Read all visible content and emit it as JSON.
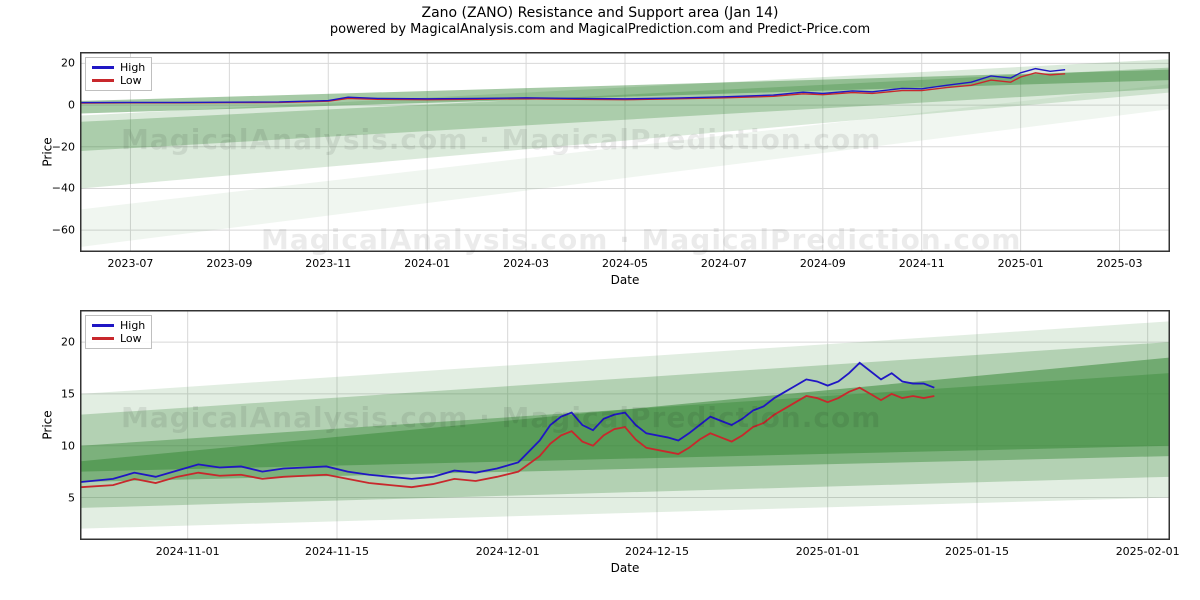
{
  "title": "Zano (ZANO) Resistance and Support area (Jan 14)",
  "subtitle": "powered by MagicalAnalysis.com and MagicalPrediction.com and Predict-Price.com",
  "legend": {
    "high": "High",
    "low": "Low"
  },
  "colors": {
    "high_line": "#1f16c4",
    "low_line": "#c8282c",
    "band_fill": "#3a8a3a",
    "grid": "#d8d8d8",
    "axis": "#333333",
    "watermark": "rgba(0,0,0,0.08)",
    "background": "#ffffff"
  },
  "font": {
    "family": "DejaVu Sans",
    "title_size": 14,
    "subtitle_size": 13,
    "axis_label_size": 12,
    "tick_size": 11,
    "legend_size": 11
  },
  "watermarks": [
    "MagicalAnalysis.com  ·  MagicalPrediction.com",
    "MagicalAnalysis.com  ·  MagicalPrediction.com",
    "MagicalAnalysis.com  ·  MagicalPrediction.com"
  ],
  "top_chart": {
    "type": "line_with_bands",
    "ylabel": "Price",
    "xlabel": "Date",
    "xlim": [
      0,
      22
    ],
    "ylim": [
      -70,
      25
    ],
    "ytick_vals": [
      -60,
      -40,
      -20,
      0,
      20
    ],
    "ytick_labels": [
      "−60",
      "−40",
      "−20",
      "0",
      "20"
    ],
    "xtick_vals": [
      1,
      3,
      5,
      7,
      9,
      11,
      13,
      15,
      17,
      19,
      21
    ],
    "xtick_labels": [
      "2023-07",
      "2023-09",
      "2023-11",
      "2024-01",
      "2024-03",
      "2024-05",
      "2024-07",
      "2024-09",
      "2024-11",
      "2025-01",
      "2025-03"
    ],
    "bands": [
      {
        "x": [
          0,
          22
        ],
        "y_top": [
          -5,
          22
        ],
        "y_bot": [
          -40,
          6
        ],
        "opacity": 0.18
      },
      {
        "x": [
          0,
          22
        ],
        "y_top": [
          -8,
          18
        ],
        "y_bot": [
          -22,
          8
        ],
        "opacity": 0.3
      },
      {
        "x": [
          0,
          22
        ],
        "y_top": [
          2,
          17
        ],
        "y_bot": [
          -4,
          12
        ],
        "opacity": 0.45
      },
      {
        "x": [
          0,
          22
        ],
        "y_top": [
          -50,
          10
        ],
        "y_bot": [
          -68,
          -2
        ],
        "opacity": 0.08
      }
    ],
    "series": {
      "high": [
        [
          0,
          1.2
        ],
        [
          1,
          1.3
        ],
        [
          2,
          1.3
        ],
        [
          3,
          1.4
        ],
        [
          4,
          1.5
        ],
        [
          5,
          2.2
        ],
        [
          5.4,
          3.8
        ],
        [
          6,
          3.2
        ],
        [
          7,
          3.0
        ],
        [
          8,
          3.2
        ],
        [
          9,
          3.5
        ],
        [
          10,
          3.2
        ],
        [
          11,
          3.0
        ],
        [
          12,
          3.4
        ],
        [
          13,
          4.0
        ],
        [
          14,
          4.8
        ],
        [
          14.6,
          6.2
        ],
        [
          15,
          5.6
        ],
        [
          15.6,
          6.8
        ],
        [
          16,
          6.4
        ],
        [
          16.6,
          8.0
        ],
        [
          17,
          7.8
        ],
        [
          17.5,
          9.5
        ],
        [
          18,
          11
        ],
        [
          18.4,
          14
        ],
        [
          18.8,
          13
        ],
        [
          19,
          15.5
        ],
        [
          19.3,
          17.5
        ],
        [
          19.6,
          16.2
        ],
        [
          19.9,
          17
        ]
      ],
      "low": [
        [
          0,
          1.0
        ],
        [
          1,
          1.1
        ],
        [
          2,
          1.1
        ],
        [
          3,
          1.2
        ],
        [
          4,
          1.3
        ],
        [
          5,
          1.9
        ],
        [
          5.4,
          3.2
        ],
        [
          6,
          2.8
        ],
        [
          7,
          2.6
        ],
        [
          8,
          2.8
        ],
        [
          9,
          3.1
        ],
        [
          10,
          2.8
        ],
        [
          11,
          2.6
        ],
        [
          12,
          3.0
        ],
        [
          13,
          3.5
        ],
        [
          14,
          4.2
        ],
        [
          14.6,
          5.4
        ],
        [
          15,
          5.0
        ],
        [
          15.6,
          6.0
        ],
        [
          16,
          5.6
        ],
        [
          16.6,
          7.0
        ],
        [
          17,
          7.0
        ],
        [
          17.5,
          8.4
        ],
        [
          18,
          9.5
        ],
        [
          18.4,
          12
        ],
        [
          18.8,
          11
        ],
        [
          19,
          13.5
        ],
        [
          19.3,
          15.5
        ],
        [
          19.6,
          14.5
        ],
        [
          19.9,
          15
        ]
      ]
    },
    "line_width": 1.4
  },
  "bottom_chart": {
    "type": "line_with_bands",
    "ylabel": "Price",
    "xlabel": "Date",
    "xlim": [
      0,
      102
    ],
    "ylim": [
      1,
      23
    ],
    "ytick_vals": [
      5,
      10,
      15,
      20
    ],
    "ytick_labels": [
      "5",
      "10",
      "15",
      "20"
    ],
    "xtick_vals": [
      10,
      24,
      40,
      54,
      70,
      84,
      100
    ],
    "xtick_labels": [
      "2024-11-01",
      "2024-11-15",
      "2024-12-01",
      "2024-12-15",
      "2025-01-01",
      "2025-01-15",
      "2025-02-01"
    ],
    "bands": [
      {
        "x": [
          0,
          102
        ],
        "y_top": [
          15,
          22
        ],
        "y_bot": [
          2,
          5
        ],
        "opacity": 0.15
      },
      {
        "x": [
          0,
          102
        ],
        "y_top": [
          13,
          20
        ],
        "y_bot": [
          4,
          7
        ],
        "opacity": 0.28
      },
      {
        "x": [
          0,
          102
        ],
        "y_top": [
          10,
          17
        ],
        "y_bot": [
          6.5,
          9
        ],
        "opacity": 0.45
      },
      {
        "x": [
          0,
          102
        ],
        "y_top": [
          8.5,
          18.5
        ],
        "y_bot": [
          7.5,
          10
        ],
        "opacity": 0.55
      }
    ],
    "series": {
      "high": [
        [
          0,
          6.5
        ],
        [
          3,
          6.8
        ],
        [
          5,
          7.4
        ],
        [
          7,
          7.0
        ],
        [
          9,
          7.6
        ],
        [
          11,
          8.2
        ],
        [
          13,
          7.9
        ],
        [
          15,
          8.0
        ],
        [
          17,
          7.5
        ],
        [
          19,
          7.8
        ],
        [
          21,
          7.9
        ],
        [
          23,
          8.0
        ],
        [
          25,
          7.5
        ],
        [
          27,
          7.2
        ],
        [
          29,
          7.0
        ],
        [
          31,
          6.8
        ],
        [
          33,
          7.0
        ],
        [
          35,
          7.6
        ],
        [
          37,
          7.4
        ],
        [
          39,
          7.8
        ],
        [
          41,
          8.4
        ],
        [
          43,
          10.5
        ],
        [
          44,
          12.0
        ],
        [
          45,
          12.8
        ],
        [
          46,
          13.2
        ],
        [
          47,
          12.0
        ],
        [
          48,
          11.5
        ],
        [
          49,
          12.6
        ],
        [
          50,
          13.0
        ],
        [
          51,
          13.2
        ],
        [
          52,
          12.0
        ],
        [
          53,
          11.2
        ],
        [
          54,
          11.0
        ],
        [
          55,
          10.8
        ],
        [
          56,
          10.5
        ],
        [
          57,
          11.2
        ],
        [
          58,
          12.0
        ],
        [
          59,
          12.8
        ],
        [
          60,
          12.4
        ],
        [
          61,
          12.0
        ],
        [
          62,
          12.6
        ],
        [
          63,
          13.4
        ],
        [
          64,
          13.8
        ],
        [
          65,
          14.6
        ],
        [
          66,
          15.2
        ],
        [
          67,
          15.8
        ],
        [
          68,
          16.4
        ],
        [
          69,
          16.2
        ],
        [
          70,
          15.8
        ],
        [
          71,
          16.2
        ],
        [
          72,
          17.0
        ],
        [
          73,
          18.0
        ],
        [
          74,
          17.2
        ],
        [
          75,
          16.4
        ],
        [
          76,
          17.0
        ],
        [
          77,
          16.2
        ],
        [
          78,
          16.0
        ],
        [
          79,
          16.0
        ],
        [
          80,
          15.6
        ]
      ],
      "low": [
        [
          0,
          6.0
        ],
        [
          3,
          6.2
        ],
        [
          5,
          6.8
        ],
        [
          7,
          6.4
        ],
        [
          9,
          7.0
        ],
        [
          11,
          7.4
        ],
        [
          13,
          7.1
        ],
        [
          15,
          7.2
        ],
        [
          17,
          6.8
        ],
        [
          19,
          7.0
        ],
        [
          21,
          7.1
        ],
        [
          23,
          7.2
        ],
        [
          25,
          6.8
        ],
        [
          27,
          6.4
        ],
        [
          29,
          6.2
        ],
        [
          31,
          6.0
        ],
        [
          33,
          6.3
        ],
        [
          35,
          6.8
        ],
        [
          37,
          6.6
        ],
        [
          39,
          7.0
        ],
        [
          41,
          7.5
        ],
        [
          43,
          9.0
        ],
        [
          44,
          10.2
        ],
        [
          45,
          11.0
        ],
        [
          46,
          11.4
        ],
        [
          47,
          10.4
        ],
        [
          48,
          10.0
        ],
        [
          49,
          11.0
        ],
        [
          50,
          11.6
        ],
        [
          51,
          11.8
        ],
        [
          52,
          10.6
        ],
        [
          53,
          9.8
        ],
        [
          54,
          9.6
        ],
        [
          55,
          9.4
        ],
        [
          56,
          9.2
        ],
        [
          57,
          9.8
        ],
        [
          58,
          10.6
        ],
        [
          59,
          11.2
        ],
        [
          60,
          10.8
        ],
        [
          61,
          10.4
        ],
        [
          62,
          11.0
        ],
        [
          63,
          11.8
        ],
        [
          64,
          12.2
        ],
        [
          65,
          13.0
        ],
        [
          66,
          13.6
        ],
        [
          67,
          14.2
        ],
        [
          68,
          14.8
        ],
        [
          69,
          14.6
        ],
        [
          70,
          14.2
        ],
        [
          71,
          14.6
        ],
        [
          72,
          15.2
        ],
        [
          73,
          15.6
        ],
        [
          74,
          15.0
        ],
        [
          75,
          14.4
        ],
        [
          76,
          15.0
        ],
        [
          77,
          14.6
        ],
        [
          78,
          14.8
        ],
        [
          79,
          14.6
        ],
        [
          80,
          14.8
        ]
      ]
    },
    "line_width": 1.8
  }
}
